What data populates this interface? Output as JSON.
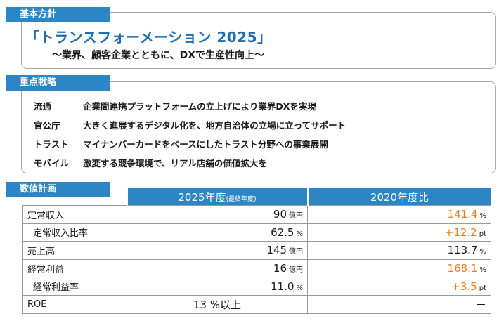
{
  "policy": {
    "tag": "基本方針",
    "headline": "「トランスフォーメーション 2025」",
    "subline": "～業界、顧客企業とともに、DXで生産性向上～"
  },
  "strategy": {
    "tag": "重点戦略",
    "items": [
      {
        "category": "流通",
        "description": "企業間連携プラットフォームの立上げにより業界DXを実現"
      },
      {
        "category": "官公庁",
        "description": "大きく進展するデジタル化を、地方自治体の立場に立ってサポート"
      },
      {
        "category": "トラスト",
        "description": "マイナンバーカードをベースにしたトラスト分野への事業展開"
      },
      {
        "category": "モバイル",
        "description": "激変する競争環境で、リアル店舗の価値拡大を"
      }
    ]
  },
  "targets": {
    "tag": "数値計画",
    "col1_header": "2025年度",
    "col1_note": "(最終年度)",
    "col2_header": "2020年度比",
    "accent_color": "#f07a1a",
    "header_color": "#2c86c6",
    "rows": [
      {
        "label": "定常収入",
        "v1": "90",
        "u1": "億円",
        "v2": "141.4",
        "u2": "%",
        "v2_highlight": true
      },
      {
        "label": "定常収入比率",
        "v1": "62.5",
        "u1": "%",
        "v2": "+12.2",
        "u2": "pt",
        "v2_highlight": true
      },
      {
        "label": "売上高",
        "v1": "145",
        "u1": "億円",
        "v2": "113.7",
        "u2": "%",
        "v2_highlight": false
      },
      {
        "label": "経常利益",
        "v1": "16",
        "u1": "億円",
        "v2": "168.1",
        "u2": "%",
        "v2_highlight": true
      },
      {
        "label": "経常利益率",
        "v1": "11.0",
        "u1": "%",
        "v2": "+3.5",
        "u2": "pt",
        "v2_highlight": true
      },
      {
        "label": "ROE",
        "v1": "13 %以上",
        "u1": "",
        "v2": "－",
        "u2": "",
        "v2_highlight": false
      }
    ]
  }
}
